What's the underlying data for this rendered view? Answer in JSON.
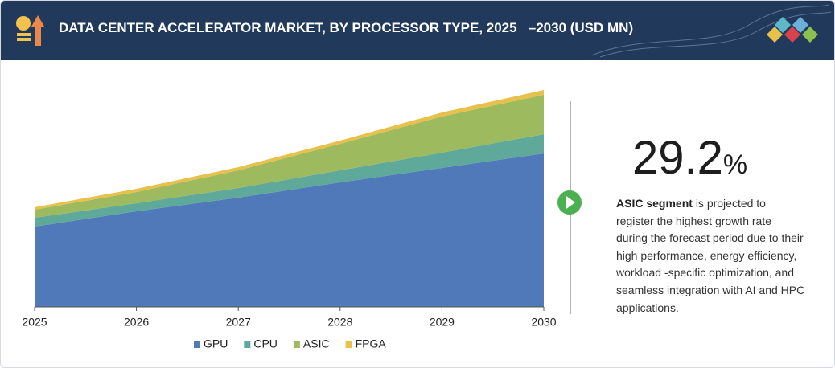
{
  "chart_data": {
    "type": "stacked-area",
    "title": "DATA CENTER ACCELERATOR MARKET, BY PROCESSOR TYPE, 2025   –2030 (USD MN)",
    "categories": [
      "2025",
      "2026",
      "2027",
      "2028",
      "2029",
      "2030"
    ],
    "series": [
      {
        "name": "GPU",
        "color": "#4f79b8",
        "values": [
          100,
          119,
          136,
          155,
          173,
          191
        ]
      },
      {
        "name": "CPU",
        "color": "#5fa99a",
        "values": [
          11,
          10,
          12,
          15,
          19,
          24
        ]
      },
      {
        "name": "ASIC",
        "color": "#9dbb5e",
        "values": [
          10,
          14,
          22,
          33,
          45,
          49
        ]
      },
      {
        "name": "FPGA",
        "color": "#e8c04c",
        "values": [
          3,
          4,
          4,
          4,
          5,
          6
        ]
      }
    ],
    "ylim": [
      0,
      270
    ]
  },
  "highlight": {
    "stat": "29.2",
    "stat_unit": "%",
    "segment": "ASIC segment",
    "description": "is projected to register the highest growth rate during the forecast period due to their high performance, energy efficiency, workload -specific optimization, and seamless integration with AI and HPC applications."
  }
}
